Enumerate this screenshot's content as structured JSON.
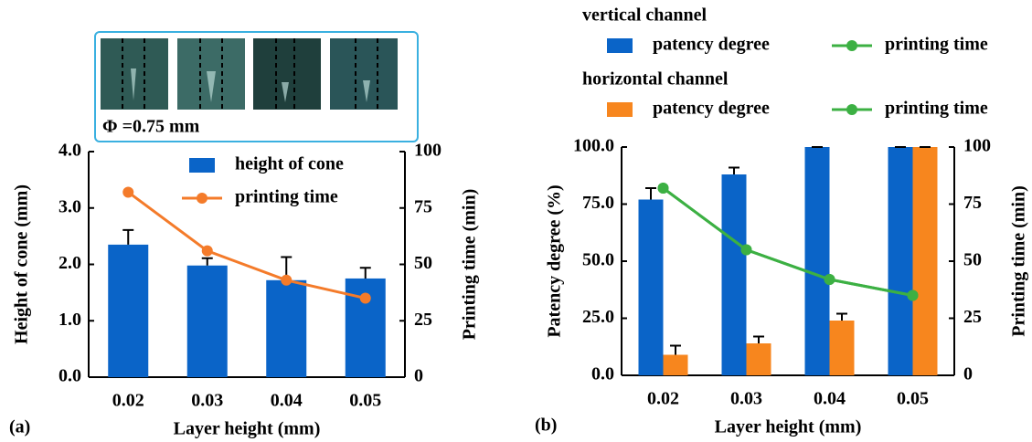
{
  "chart_data": [
    {
      "type": "bar",
      "panel_label": "(a)",
      "inset_label": "Φ =0.75 mm",
      "xlabel": "Layer height (mm)",
      "ylabel": "Height of cone (mm)",
      "y2label": "Printing time (min)",
      "categories": [
        "0.02",
        "0.03",
        "0.04",
        "0.05"
      ],
      "ylim": [
        0,
        4
      ],
      "yticks": [
        {
          "value": 0,
          "label": "0.0"
        },
        {
          "value": 1,
          "label": "1.0"
        },
        {
          "value": 2,
          "label": "2.0"
        },
        {
          "value": 3,
          "label": "3.0"
        },
        {
          "value": 4,
          "label": "4.0"
        }
      ],
      "y2lim": [
        0,
        100
      ],
      "y2ticks": [
        0,
        25,
        50,
        75,
        100
      ],
      "legend": "upper right",
      "series": [
        {
          "name": "height of cone",
          "type": "bar",
          "color": "#0a64c8",
          "values": [
            2.35,
            1.98,
            1.72,
            1.75
          ],
          "errors": [
            0.26,
            0.13,
            0.41,
            0.19
          ]
        },
        {
          "name": "printing time",
          "type": "line",
          "axis": "y2",
          "color": "#f47b2a",
          "values": [
            82,
            56,
            43,
            35
          ]
        }
      ]
    },
    {
      "type": "bar",
      "panel_label": "(b)",
      "xlabel": "Layer height (mm)",
      "ylabel": "Patency degree (%)",
      "y2label": "Printing time (min)",
      "categories": [
        "0.02",
        "0.03",
        "0.04",
        "0.05"
      ],
      "ylim": [
        0,
        100
      ],
      "yticks": [
        {
          "value": 0,
          "label": "0.0"
        },
        {
          "value": 25,
          "label": "25.0"
        },
        {
          "value": 50,
          "label": "50.0"
        },
        {
          "value": 75,
          "label": "75.0"
        },
        {
          "value": 100,
          "label": "100.0"
        }
      ],
      "y2lim": [
        0,
        100
      ],
      "y2ticks": [
        0,
        25,
        50,
        75,
        100
      ],
      "legend": "above",
      "series": [
        {
          "name": "patency degree",
          "group": "vertical channel",
          "type": "bar",
          "color": "#0a64c8",
          "values": [
            77,
            88,
            100,
            100
          ],
          "errors": [
            5,
            3,
            0,
            0
          ]
        },
        {
          "name": "printing time",
          "group": "vertical channel",
          "type": "line",
          "axis": "y2",
          "color": "#3cb043",
          "values": [
            82,
            55,
            42,
            35
          ]
        },
        {
          "name": "patency degree",
          "group": "horizontal channel",
          "type": "bar",
          "color": "#f7861e",
          "values": [
            9,
            14,
            24,
            100
          ],
          "errors": [
            4,
            3,
            3,
            0
          ]
        },
        {
          "name": "printing time",
          "group": "horizontal channel",
          "type": "line",
          "axis": "y2",
          "color": "#3cb043",
          "values": [
            82,
            55,
            42,
            35
          ]
        }
      ]
    }
  ]
}
